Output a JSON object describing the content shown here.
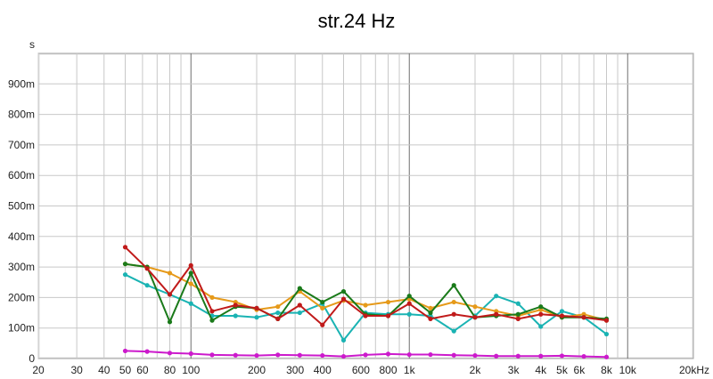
{
  "chart_data": {
    "type": "line",
    "title": "str.24 Hz",
    "ylabel": "s",
    "xscale": "log",
    "xlim": [
      20,
      20000
    ],
    "ylim": [
      0,
      1.0
    ],
    "grid": true,
    "x_ticks": [
      {
        "v": 20,
        "label": "20"
      },
      {
        "v": 30,
        "label": "30"
      },
      {
        "v": 40,
        "label": "40"
      },
      {
        "v": 50,
        "label": "50"
      },
      {
        "v": 60,
        "label": "60"
      },
      {
        "v": 80,
        "label": "80"
      },
      {
        "v": 100,
        "label": "100"
      },
      {
        "v": 200,
        "label": "200"
      },
      {
        "v": 300,
        "label": "300"
      },
      {
        "v": 400,
        "label": "400"
      },
      {
        "v": 600,
        "label": "600"
      },
      {
        "v": 800,
        "label": "800"
      },
      {
        "v": 1000,
        "label": "1k"
      },
      {
        "v": 2000,
        "label": "2k"
      },
      {
        "v": 3000,
        "label": "3k"
      },
      {
        "v": 4000,
        "label": "4k"
      },
      {
        "v": 5000,
        "label": "5k"
      },
      {
        "v": 6000,
        "label": "6k"
      },
      {
        "v": 8000,
        "label": "8k"
      },
      {
        "v": 10000,
        "label": "10k"
      },
      {
        "v": 20000,
        "label": "20kHz"
      }
    ],
    "y_ticks": [
      {
        "v": 0,
        "label": "0"
      },
      {
        "v": 0.1,
        "label": "100m"
      },
      {
        "v": 0.2,
        "label": "200m"
      },
      {
        "v": 0.3,
        "label": "300m"
      },
      {
        "v": 0.4,
        "label": "400m"
      },
      {
        "v": 0.5,
        "label": "500m"
      },
      {
        "v": 0.6,
        "label": "600m"
      },
      {
        "v": 0.7,
        "label": "700m"
      },
      {
        "v": 0.8,
        "label": "800m"
      },
      {
        "v": 0.9,
        "label": "900m"
      }
    ],
    "x": [
      50,
      63,
      80,
      100,
      125,
      160,
      200,
      250,
      315,
      400,
      500,
      630,
      800,
      1000,
      1250,
      1600,
      2000,
      2500,
      3150,
      4000,
      5000,
      6300,
      8000
    ],
    "series": [
      {
        "color": "#1AB3B3",
        "values": [
          0.275,
          0.24,
          0.21,
          0.18,
          0.14,
          0.14,
          0.135,
          0.15,
          0.15,
          0.18,
          0.06,
          0.15,
          0.145,
          0.145,
          0.14,
          0.09,
          0.14,
          0.205,
          0.18,
          0.105,
          0.155,
          0.135,
          0.08
        ]
      },
      {
        "color": "#E69A1A",
        "values": [
          0.31,
          0.3,
          0.28,
          0.245,
          0.2,
          0.185,
          0.16,
          0.17,
          0.22,
          0.165,
          0.19,
          0.175,
          0.185,
          0.195,
          0.165,
          0.185,
          0.17,
          0.155,
          0.14,
          0.16,
          0.135,
          0.145,
          0.125
        ]
      },
      {
        "color": "#1A7A1A",
        "values": [
          0.31,
          0.3,
          0.12,
          0.28,
          0.125,
          0.17,
          0.165,
          0.13,
          0.23,
          0.185,
          0.22,
          0.145,
          0.14,
          0.205,
          0.15,
          0.24,
          0.135,
          0.14,
          0.145,
          0.17,
          0.135,
          0.135,
          0.13
        ]
      },
      {
        "color": "#C01A1A",
        "values": [
          0.365,
          0.295,
          0.21,
          0.305,
          0.155,
          0.175,
          0.165,
          0.13,
          0.175,
          0.11,
          0.195,
          0.14,
          0.14,
          0.18,
          0.13,
          0.145,
          0.135,
          0.145,
          0.13,
          0.145,
          0.14,
          0.135,
          0.125
        ]
      },
      {
        "color": "#CC1ACC",
        "values": [
          0.025,
          0.023,
          0.018,
          0.016,
          0.012,
          0.011,
          0.01,
          0.012,
          0.011,
          0.01,
          0.007,
          0.012,
          0.015,
          0.013,
          0.013,
          0.011,
          0.01,
          0.008,
          0.008,
          0.008,
          0.009,
          0.007,
          0.005
        ]
      }
    ]
  }
}
